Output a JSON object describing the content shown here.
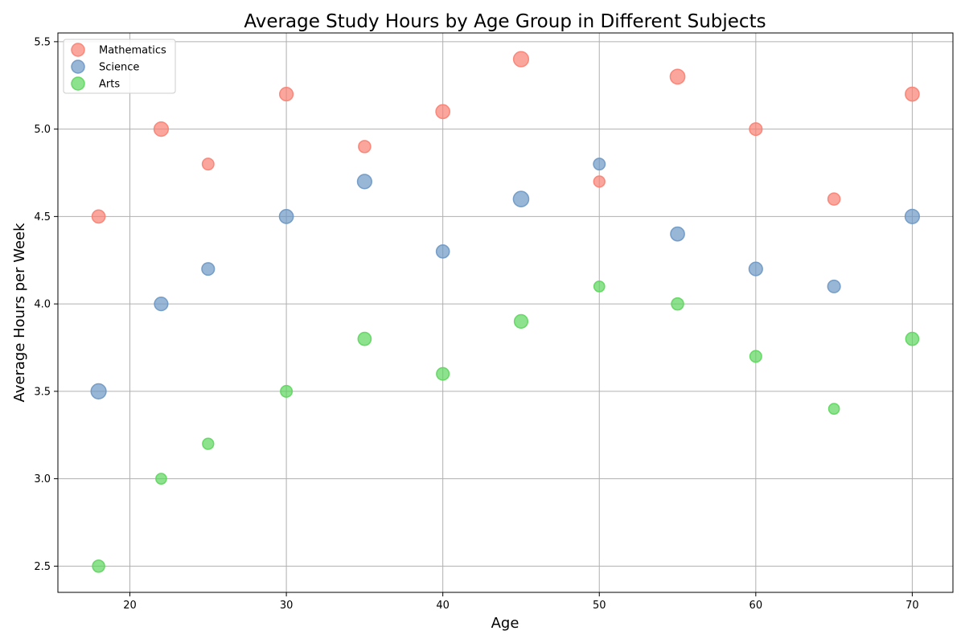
{
  "chart_data": {
    "type": "scatter",
    "title": "Average Study Hours by Age Group in Different Subjects",
    "xlabel": "Age",
    "ylabel": "Average Hours per Week",
    "xlim": [
      15.4,
      72.6
    ],
    "ylim": [
      2.35,
      5.55
    ],
    "x_ticks": [
      20,
      30,
      40,
      50,
      60,
      70
    ],
    "y_ticks": [
      2.5,
      3.0,
      3.5,
      4.0,
      4.5,
      5.0,
      5.5
    ],
    "grid": true,
    "legend_position": "upper-left",
    "x": [
      18,
      22,
      25,
      30,
      35,
      40,
      45,
      50,
      55,
      60,
      65,
      70
    ],
    "series": [
      {
        "name": "Mathematics",
        "color": "#fa8072",
        "values": [
          4.5,
          5.0,
          4.8,
          5.2,
          4.9,
          5.1,
          5.4,
          4.7,
          5.3,
          5.0,
          4.6,
          5.2
        ],
        "sizes": [
          150,
          180,
          120,
          160,
          130,
          170,
          200,
          110,
          190,
          140,
          130,
          170
        ]
      },
      {
        "name": "Science",
        "color": "#6c97c4",
        "values": [
          3.5,
          4.0,
          4.2,
          4.5,
          4.7,
          4.3,
          4.6,
          4.8,
          4.4,
          4.2,
          4.1,
          4.5
        ],
        "sizes": [
          200,
          160,
          140,
          170,
          180,
          150,
          210,
          120,
          170,
          160,
          140,
          180
        ]
      },
      {
        "name": "Arts",
        "color": "#5cd65c",
        "values": [
          2.5,
          3.0,
          3.2,
          3.5,
          3.8,
          3.6,
          3.9,
          4.1,
          4.0,
          3.7,
          3.4,
          3.8
        ],
        "sizes": [
          130,
          100,
          110,
          120,
          150,
          140,
          160,
          100,
          130,
          120,
          100,
          150
        ]
      }
    ]
  }
}
